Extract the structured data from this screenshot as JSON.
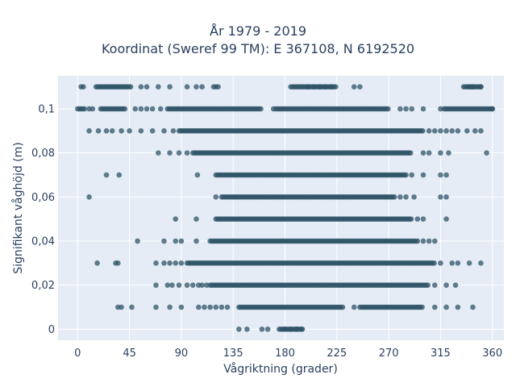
{
  "chart_data": {
    "type": "scatter",
    "title_line1": "År 1979 - 2019",
    "title_line2": "Koordinat (Sweref 99 TM): E 367108, N 6192520",
    "xlabel": "Vågriktning (grader)",
    "ylabel": "Signifikant våghöjd (m)",
    "xlim": [
      -17,
      370
    ],
    "ylim": [
      -0.005,
      0.115
    ],
    "x_ticks": [
      0,
      45,
      90,
      135,
      180,
      225,
      270,
      315,
      360
    ],
    "x_tick_labels": [
      "0",
      "45",
      "90",
      "135",
      "180",
      "225",
      "270",
      "315",
      "360"
    ],
    "y_ticks": [
      0,
      0.02,
      0.04,
      0.06,
      0.08,
      0.1
    ],
    "y_tick_labels": [
      "0",
      "0,02",
      "0,04",
      "0,06",
      "0,08",
      "0,1"
    ],
    "grid": true,
    "marker_color": "#2f5467",
    "rows": [
      {
        "y": 0.11,
        "dense": [
          [
            16,
            47
          ],
          [
            185,
            225
          ],
          [
            335,
            350
          ]
        ],
        "scattered": [
          3,
          5,
          55,
          60,
          70,
          80,
          95,
          103,
          108,
          118,
          120,
          122,
          200,
          205,
          210,
          215,
          220,
          240,
          245,
          340,
          343,
          350
        ]
      },
      {
        "y": 0.1,
        "dense": [
          [
            0,
            6
          ],
          [
            20,
            42
          ],
          [
            78,
            160
          ],
          [
            172,
            270
          ],
          [
            318,
            360
          ]
        ],
        "scattered": [
          10,
          13,
          50,
          55,
          60,
          65,
          72,
          170,
          280,
          285,
          290,
          300,
          315,
          360
        ]
      },
      {
        "y": 0.09,
        "dense": [
          [
            88,
            300
          ]
        ],
        "scattered": [
          10,
          18,
          25,
          30,
          38,
          45,
          55,
          65,
          75,
          83,
          305,
          310,
          315,
          320,
          325,
          330,
          338,
          345,
          350
        ]
      },
      {
        "y": 0.08,
        "dense": [
          [
            100,
            290
          ]
        ],
        "scattered": [
          70,
          80,
          88,
          95,
          300,
          305,
          315,
          322,
          355
        ]
      },
      {
        "y": 0.07,
        "dense": [
          [
            120,
            285
          ]
        ],
        "scattered": [
          25,
          36,
          104,
          290,
          300,
          315,
          320
        ]
      },
      {
        "y": 0.06,
        "dense": [
          [
            125,
            275
          ]
        ],
        "scattered": [
          10,
          120,
          280,
          285,
          292,
          315,
          320
        ]
      },
      {
        "y": 0.05,
        "dense": [
          [
            120,
            290
          ]
        ],
        "scattered": [
          85,
          103,
          295,
          300,
          320
        ]
      },
      {
        "y": 0.04,
        "dense": [
          [
            115,
            295
          ]
        ],
        "scattered": [
          52,
          75,
          85,
          90,
          103,
          300,
          305,
          310
        ]
      },
      {
        "y": 0.03,
        "dense": [
          [
            95,
            310
          ]
        ],
        "scattered": [
          17,
          33,
          35,
          68,
          75,
          80,
          85,
          90,
          315,
          325,
          330,
          340,
          350
        ]
      },
      {
        "y": 0.02,
        "dense": [
          [
            115,
            305
          ]
        ],
        "scattered": [
          68,
          78,
          82,
          88,
          95,
          100,
          105,
          108,
          112,
          310,
          320,
          328
        ]
      },
      {
        "y": 0.01,
        "dense": [
          [
            140,
            230
          ],
          [
            245,
            300
          ]
        ],
        "scattered": [
          35,
          38,
          47,
          68,
          80,
          90,
          105,
          110,
          115,
          120,
          125,
          130,
          240,
          310,
          320,
          330,
          343
        ]
      },
      {
        "y": 0.0,
        "dense": [
          [
            175,
            195
          ]
        ],
        "scattered": [
          140,
          147,
          160,
          165,
          180,
          185,
          190,
          195
        ]
      }
    ]
  }
}
